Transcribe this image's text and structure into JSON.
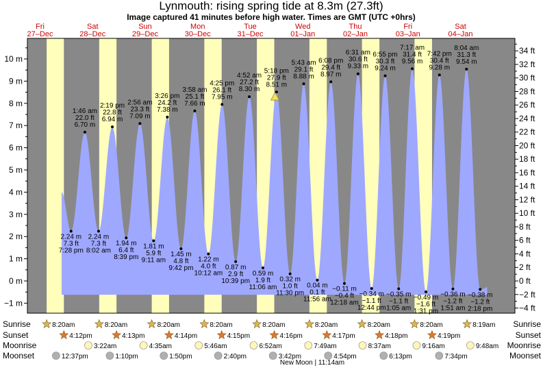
{
  "title": "Lynmouth: rising  spring tide at 8.3m (27.3ft)",
  "subtitle": "Image captured 41 minutes before high water. Times are GMT (UTC +0hrs)",
  "colors": {
    "night": "#888888",
    "day": "#ffffbb",
    "tide": "#9fa8ff",
    "sun": "#d9b84a",
    "sunset": "#e07830",
    "moonrise": "#fff6b8",
    "moonset": "#b0b0b0",
    "marker": "#f2e25a",
    "daylabel": "#cc0000"
  },
  "days": [
    {
      "dow": "Fri",
      "date": "27–Dec"
    },
    {
      "dow": "Sat",
      "date": "28–Dec"
    },
    {
      "dow": "Sun",
      "date": "29–Dec"
    },
    {
      "dow": "Mon",
      "date": "30–Dec"
    },
    {
      "dow": "Tue",
      "date": "31–Dec"
    },
    {
      "dow": "Wed",
      "date": "01–Jan"
    },
    {
      "dow": "Thu",
      "date": "02–Jan"
    },
    {
      "dow": "Fri",
      "date": "03–Jan"
    },
    {
      "dow": "Sat",
      "date": "04–Jan"
    }
  ],
  "left_axis": {
    "unit": "m",
    "ticks": [
      "10 m",
      "9 m",
      "8 m",
      "7 m",
      "6 m",
      "5 m",
      "4 m",
      "3 m",
      "2 m",
      "1 m",
      "0 m",
      "−1 m"
    ]
  },
  "right_axis": {
    "unit": "ft",
    "ticks": [
      "34 ft",
      "32 ft",
      "30 ft",
      "28 ft",
      "26 ft",
      "24 ft",
      "22 ft",
      "20 ft",
      "18 ft",
      "16 ft",
      "14 ft",
      "12 ft",
      "10 ft",
      "8 ft",
      "6 ft",
      "4 ft",
      "2 ft",
      "0 ft",
      "−2 ft",
      "−4 ft"
    ]
  },
  "chart_data": {
    "type": "area",
    "title": "Lynmouth: rising  spring tide at 8.3m (27.3ft)",
    "ylabel_left": "m",
    "ylabel_right": "ft",
    "ylim_m": [
      -1.4,
      10.7
    ],
    "current": {
      "height_ft": "27.3 ft",
      "height_m": "8.3 m"
    },
    "extremes": [
      {
        "kind": "low",
        "day": 0,
        "hour": 19.47,
        "time": "7:28 pm",
        "m": "2.24 m",
        "ft": "7.3 ft",
        "value": 2.24
      },
      {
        "kind": "high",
        "day": 1,
        "hour": 1.77,
        "time": "1:46 am",
        "m": "6.70 m",
        "ft": "22.0 ft",
        "value": 6.7
      },
      {
        "kind": "low",
        "day": 1,
        "hour": 8.03,
        "time": "8:02 am",
        "m": "2.24 m",
        "ft": "7.3 ft",
        "value": 2.24
      },
      {
        "kind": "high",
        "day": 1,
        "hour": 14.32,
        "time": "2:19 pm",
        "m": "6.94 m",
        "ft": "22.8 ft",
        "value": 6.94
      },
      {
        "kind": "low",
        "day": 1,
        "hour": 20.65,
        "time": "8:39 pm",
        "m": "1.94 m",
        "ft": "6.4 ft",
        "value": 1.94
      },
      {
        "kind": "high",
        "day": 2,
        "hour": 2.93,
        "time": "2:56 am",
        "m": "7.09 m",
        "ft": "23.3 ft",
        "value": 7.09
      },
      {
        "kind": "low",
        "day": 2,
        "hour": 9.18,
        "time": "9:11 am",
        "m": "1.81 m",
        "ft": "5.9 ft",
        "value": 1.81
      },
      {
        "kind": "high",
        "day": 2,
        "hour": 15.43,
        "time": "3:26 pm",
        "m": "7.38 m",
        "ft": "24.2 ft",
        "value": 7.38
      },
      {
        "kind": "low",
        "day": 2,
        "hour": 21.7,
        "time": "9:42 pm",
        "m": "1.45 m",
        "ft": "4.8 ft",
        "value": 1.45
      },
      {
        "kind": "high",
        "day": 3,
        "hour": 3.97,
        "time": "3:58 am",
        "m": "7.66 m",
        "ft": "25.1 ft",
        "value": 7.66
      },
      {
        "kind": "low",
        "day": 3,
        "hour": 10.2,
        "time": "10:12 am",
        "m": "1.22 m",
        "ft": "4.0 ft",
        "value": 1.22
      },
      {
        "kind": "high",
        "day": 3,
        "hour": 16.42,
        "time": "4:25 pm",
        "m": "7.95 m",
        "ft": "26.1 ft",
        "value": 7.95
      },
      {
        "kind": "low",
        "day": 3,
        "hour": 22.65,
        "time": "10:39 pm",
        "m": "0.87 m",
        "ft": "2.9 ft",
        "value": 0.87
      },
      {
        "kind": "high",
        "day": 4,
        "hour": 4.87,
        "time": "4:52 am",
        "m": "8.30 m",
        "ft": "27.2 ft",
        "value": 8.3
      },
      {
        "kind": "low",
        "day": 4,
        "hour": 11.1,
        "time": "11:06 am",
        "m": "0.59 m",
        "ft": "1.9 ft",
        "value": 0.59
      },
      {
        "kind": "high",
        "day": 4,
        "hour": 17.3,
        "time": "5:18 pm",
        "m": "8.51 m",
        "ft": "27.9 ft",
        "value": 8.51
      },
      {
        "kind": "low",
        "day": 4,
        "hour": 23.5,
        "time": "11:30 pm",
        "m": "0.32 m",
        "ft": "1.0 ft",
        "value": 0.32
      },
      {
        "kind": "high",
        "day": 5,
        "hour": 5.72,
        "time": "5:43 am",
        "m": "8.88 m",
        "ft": "29.1 ft",
        "value": 8.88
      },
      {
        "kind": "low",
        "day": 5,
        "hour": 11.93,
        "time": "11:56 am",
        "m": "0.04 m",
        "ft": "0.1 ft",
        "value": 0.04
      },
      {
        "kind": "high",
        "day": 5,
        "hour": 18.13,
        "time": "6:08 pm",
        "m": "8.97 m",
        "ft": "29.4 ft",
        "value": 8.97
      },
      {
        "kind": "low",
        "day": 6,
        "hour": 0.3,
        "time": "12:18 am",
        "m": "−0.11 m",
        "ft": "−0.4 ft",
        "value": -0.11
      },
      {
        "kind": "high",
        "day": 6,
        "hour": 6.52,
        "time": "6:31 am",
        "m": "9.33 m",
        "ft": "30.6 ft",
        "value": 9.33
      },
      {
        "kind": "low",
        "day": 6,
        "hour": 12.73,
        "time": "12:44 pm",
        "m": "−0.34 m",
        "ft": "−1.1 ft",
        "value": -0.34
      },
      {
        "kind": "high",
        "day": 6,
        "hour": 18.92,
        "time": "6:55 pm",
        "m": "9.24 m",
        "ft": "30.3 ft",
        "value": 9.24
      },
      {
        "kind": "low",
        "day": 7,
        "hour": 1.08,
        "time": "1:05 am",
        "m": "−0.35 m",
        "ft": "−1.1 ft",
        "value": -0.35
      },
      {
        "kind": "high",
        "day": 7,
        "hour": 7.28,
        "time": "7:17 am",
        "m": "9.56 m",
        "ft": "31.4 ft",
        "value": 9.56
      },
      {
        "kind": "low",
        "day": 7,
        "hour": 13.52,
        "time": "1:31 pm",
        "m": "−0.49 m",
        "ft": "−1.6 ft",
        "value": -0.49
      },
      {
        "kind": "high",
        "day": 7,
        "hour": 19.7,
        "time": "7:42 pm",
        "m": "9.28 m",
        "ft": "30.4 ft",
        "value": 9.28
      },
      {
        "kind": "low",
        "day": 8,
        "hour": 1.85,
        "time": "1:51 am",
        "m": "−0.36 m",
        "ft": "−1.2 ft",
        "value": -0.36
      },
      {
        "kind": "high",
        "day": 8,
        "hour": 8.07,
        "time": "8:04 am",
        "m": "9.54 m",
        "ft": "31.3 ft",
        "value": 9.54
      },
      {
        "kind": "low",
        "day": 8,
        "hour": 14.3,
        "time": "2:18 pm",
        "m": "−0.38 m",
        "ft": "−1.2 ft",
        "value": -0.38
      }
    ]
  },
  "astro": {
    "labels": {
      "sunrise": "Sunrise",
      "sunset": "Sunset",
      "moonrise": "Moonrise",
      "moonset": "Moonset"
    },
    "sunrise": [
      {
        "day": 0,
        "hour": 8.33,
        "time": "8:20am"
      },
      {
        "day": 1,
        "hour": 8.33,
        "time": "8:20am"
      },
      {
        "day": 2,
        "hour": 8.33,
        "time": "8:20am"
      },
      {
        "day": 3,
        "hour": 8.33,
        "time": "8:20am"
      },
      {
        "day": 4,
        "hour": 8.33,
        "time": "8:20am"
      },
      {
        "day": 5,
        "hour": 8.33,
        "time": "8:20am"
      },
      {
        "day": 6,
        "hour": 8.33,
        "time": "8:20am"
      },
      {
        "day": 7,
        "hour": 8.33,
        "time": "8:20am"
      },
      {
        "day": 8,
        "hour": 8.32,
        "time": "8:19am"
      }
    ],
    "sunset": [
      {
        "day": 0,
        "hour": 16.2,
        "time": "4:12pm"
      },
      {
        "day": 1,
        "hour": 16.22,
        "time": "4:13pm"
      },
      {
        "day": 2,
        "hour": 16.23,
        "time": "4:14pm"
      },
      {
        "day": 3,
        "hour": 16.25,
        "time": "4:15pm"
      },
      {
        "day": 4,
        "hour": 16.27,
        "time": "4:16pm"
      },
      {
        "day": 5,
        "hour": 16.28,
        "time": "4:17pm"
      },
      {
        "day": 6,
        "hour": 16.3,
        "time": "4:18pm"
      },
      {
        "day": 7,
        "hour": 16.32,
        "time": "4:19pm"
      }
    ],
    "moonrise": [
      {
        "day": 1,
        "hour": 3.37,
        "time": "3:22am"
      },
      {
        "day": 2,
        "hour": 4.58,
        "time": "4:35am"
      },
      {
        "day": 3,
        "hour": 5.77,
        "time": "5:46am"
      },
      {
        "day": 4,
        "hour": 6.87,
        "time": "6:52am"
      },
      {
        "day": 5,
        "hour": 7.82,
        "time": "7:49am"
      },
      {
        "day": 6,
        "hour": 8.62,
        "time": "8:37am"
      },
      {
        "day": 7,
        "hour": 9.27,
        "time": "9:16am"
      },
      {
        "day": 8,
        "hour": 9.8,
        "time": "9:48am"
      }
    ],
    "moonset": [
      {
        "day": 0,
        "hour": 12.62,
        "time": "12:37pm"
      },
      {
        "day": 1,
        "hour": 13.17,
        "time": "1:10pm"
      },
      {
        "day": 2,
        "hour": 13.83,
        "time": "1:50pm"
      },
      {
        "day": 3,
        "hour": 14.67,
        "time": "2:40pm"
      },
      {
        "day": 4,
        "hour": 15.7,
        "time": "3:42pm"
      },
      {
        "day": 5,
        "hour": 16.9,
        "time": "4:54pm"
      },
      {
        "day": 6,
        "hour": 18.22,
        "time": "6:13pm"
      },
      {
        "day": 7,
        "hour": 19.57,
        "time": "7:34pm"
      }
    ],
    "moon_phase": "New Moon | 11:14am"
  }
}
